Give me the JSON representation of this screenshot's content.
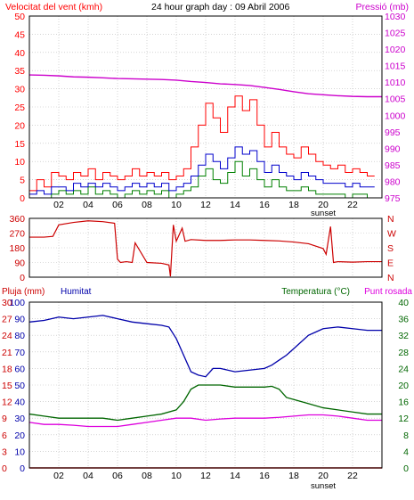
{
  "colors": {
    "wind_avg": "#0000cc",
    "wind_gust": "#ff0000",
    "wind_low": "#008000",
    "pressure": "#cc00cc",
    "direction": "#cc0000",
    "humidity": "#0000aa",
    "temperature": "#006600",
    "dewpoint": "#dd00dd",
    "rain": "#cc0000",
    "frame": "#000000",
    "grid": "#bbbbbb"
  },
  "chart_data": [
    {
      "type": "line",
      "title": "24 hour graph day : 09 Abril 2006",
      "left_axis_label": "Velocitat del vent (kmh)",
      "right_axis_label": "Pressió (mb)",
      "x_tick_labels": [
        "02",
        "04",
        "06",
        "08",
        "10",
        "12",
        "14",
        "16",
        "18",
        "20",
        "22"
      ],
      "x_ticks_hours": [
        2,
        4,
        6,
        8,
        10,
        12,
        14,
        16,
        18,
        20,
        22
      ],
      "x_range_hours": [
        0,
        24
      ],
      "sunset_label": "sunset",
      "sunset_hour": 20,
      "y_left_ticks": [
        0,
        5,
        10,
        15,
        20,
        25,
        30,
        35,
        40,
        45,
        50
      ],
      "y_left_range": [
        0,
        50
      ],
      "y_right_ticks": [
        975,
        980,
        985,
        990,
        995,
        1000,
        1005,
        1010,
        1015,
        1020,
        1025,
        1030
      ],
      "y_right_range": [
        975,
        1030
      ],
      "grid": true,
      "series": [
        {
          "name": "wind_gust",
          "x": [
            0,
            0.5,
            1,
            1.5,
            2,
            2.5,
            3,
            3.5,
            4,
            4.5,
            5,
            5.5,
            6,
            6.5,
            7,
            7.5,
            8,
            8.5,
            9,
            9.5,
            10,
            10.5,
            11,
            11.5,
            12,
            12.5,
            13,
            13.5,
            14,
            14.5,
            15,
            15.5,
            16,
            16.5,
            17,
            17.5,
            18,
            18.5,
            19,
            19.5,
            20,
            20.5,
            21,
            21.5,
            22,
            22.5,
            23,
            23.5
          ],
          "values": [
            2,
            5,
            3,
            7,
            6,
            5,
            7,
            6,
            8,
            5,
            7,
            6,
            5,
            6,
            8,
            6,
            7,
            6,
            7,
            5,
            6,
            8,
            14,
            20,
            26,
            22,
            18,
            25,
            28,
            24,
            27,
            20,
            14,
            18,
            14,
            12,
            11,
            14,
            12,
            10,
            9,
            8,
            9,
            7,
            8,
            7,
            6,
            6
          ]
        },
        {
          "name": "wind_avg",
          "x": [
            0,
            0.5,
            1,
            1.5,
            2,
            2.5,
            3,
            3.5,
            4,
            4.5,
            5,
            5.5,
            6,
            6.5,
            7,
            7.5,
            8,
            8.5,
            9,
            9.5,
            10,
            10.5,
            11,
            11.5,
            12,
            12.5,
            13,
            13.5,
            14,
            14.5,
            15,
            15.5,
            16,
            16.5,
            17,
            17.5,
            18,
            18.5,
            19,
            19.5,
            20,
            20.5,
            21,
            21.5,
            22,
            22.5,
            23,
            23.5
          ],
          "values": [
            1,
            2,
            1,
            3,
            3,
            2,
            4,
            3,
            4,
            3,
            4,
            3,
            2,
            3,
            4,
            3,
            4,
            3,
            4,
            2,
            3,
            4,
            6,
            9,
            12,
            10,
            8,
            11,
            14,
            12,
            13,
            10,
            7,
            9,
            7,
            6,
            5,
            7,
            6,
            5,
            4,
            4,
            4,
            3,
            4,
            3,
            3,
            3
          ]
        },
        {
          "name": "wind_low",
          "x": [
            0,
            0.5,
            1,
            1.5,
            2,
            2.5,
            3,
            3.5,
            4,
            4.5,
            5,
            5.5,
            6,
            6.5,
            7,
            7.5,
            8,
            8.5,
            9,
            9.5,
            10,
            10.5,
            11,
            11.5,
            12,
            12.5,
            13,
            13.5,
            14,
            14.5,
            15,
            15.5,
            16,
            16.5,
            17,
            17.5,
            18,
            18.5,
            19,
            19.5,
            20,
            20.5,
            21,
            21.5,
            22,
            22.5,
            23,
            23.5
          ],
          "values": [
            0,
            0,
            0,
            1,
            2,
            1,
            2,
            1,
            3,
            1,
            2,
            1,
            0,
            1,
            2,
            1,
            2,
            1,
            2,
            0,
            1,
            2,
            3,
            6,
            8,
            5,
            4,
            7,
            10,
            6,
            8,
            5,
            3,
            5,
            3,
            2,
            2,
            3,
            2,
            1,
            1,
            1,
            1,
            0,
            1,
            1,
            0,
            0
          ]
        },
        {
          "name": "pressure",
          "axis": "right",
          "x": [
            0,
            1,
            2,
            3,
            4,
            5,
            6,
            7,
            8,
            9,
            10,
            11,
            12,
            13,
            14,
            15,
            16,
            17,
            18,
            19,
            20,
            21,
            22,
            23,
            24
          ],
          "values": [
            1012.2,
            1012.1,
            1011.9,
            1011.6,
            1011.5,
            1011.3,
            1011.1,
            1011.0,
            1010.9,
            1010.8,
            1010.6,
            1010.2,
            1009.9,
            1009.5,
            1009.3,
            1009.0,
            1008.4,
            1007.8,
            1007.1,
            1006.5,
            1006.2,
            1005.9,
            1005.7,
            1005.6,
            1005.6
          ]
        }
      ]
    },
    {
      "type": "line",
      "right_axis_label": "N W S E N",
      "y_ticks": [
        0,
        90,
        180,
        270,
        360
      ],
      "y_range": [
        0,
        360
      ],
      "x_range_hours": [
        0,
        24
      ],
      "grid": true,
      "series": [
        {
          "name": "direction",
          "x": [
            0,
            1,
            1.6,
            2,
            3,
            4,
            5,
            5.8,
            6,
            6.2,
            6.6,
            7,
            7.2,
            8,
            9,
            9.5,
            9.6,
            9.8,
            10,
            10.4,
            10.6,
            11,
            12,
            13,
            14,
            15,
            16,
            17,
            18,
            19,
            20,
            20.2,
            20.5,
            20.7,
            21,
            22,
            23,
            24
          ],
          "values": [
            245,
            245,
            250,
            320,
            335,
            345,
            340,
            330,
            110,
            90,
            95,
            90,
            210,
            90,
            85,
            75,
            5,
            320,
            220,
            300,
            220,
            230,
            225,
            225,
            228,
            228,
            225,
            222,
            215,
            205,
            175,
            140,
            310,
            90,
            95,
            92,
            95,
            95
          ]
        }
      ]
    },
    {
      "type": "line",
      "left_axis_labels": [
        "Pluja (mm)",
        "Humitat"
      ],
      "right_axis_label": "Temperatura (°C)",
      "right_axis_label2": "Punt rosada",
      "x_tick_labels": [
        "02",
        "04",
        "06",
        "08",
        "10",
        "12",
        "14",
        "16",
        "18",
        "20",
        "22"
      ],
      "x_ticks_hours": [
        2,
        4,
        6,
        8,
        10,
        12,
        14,
        16,
        18,
        20,
        22
      ],
      "x_range_hours": [
        0,
        24
      ],
      "sunset_label": "sunset",
      "sunset_hour": 20,
      "y_left_ticks": [
        0,
        10,
        20,
        30,
        40,
        50,
        60,
        70,
        80,
        90,
        100
      ],
      "y_left_alt_ticks": [
        0,
        3,
        6,
        9,
        12,
        15,
        18,
        21,
        24,
        27,
        30
      ],
      "y_left_range": [
        0,
        100
      ],
      "y_right_ticks": [
        0,
        4,
        8,
        12,
        16,
        20,
        24,
        28,
        32,
        36,
        40
      ],
      "y_right_range": [
        0,
        40
      ],
      "grid": true,
      "series": [
        {
          "name": "humidity",
          "x": [
            0,
            1,
            2,
            3,
            4,
            5,
            6,
            7,
            8,
            9,
            9.5,
            10,
            10.5,
            11,
            11.5,
            12,
            12.5,
            13,
            14,
            15,
            16,
            16.5,
            17,
            17.5,
            18,
            18.5,
            19,
            19.5,
            20,
            21,
            22,
            23,
            24
          ],
          "values": [
            88,
            89,
            91,
            90,
            91,
            92,
            90,
            88,
            87,
            86,
            85,
            78,
            68,
            58,
            56,
            55,
            60,
            60,
            58,
            59,
            60,
            62,
            65,
            68,
            72,
            76,
            80,
            82,
            84,
            85,
            84,
            83,
            83
          ]
        },
        {
          "name": "rain",
          "x": [
            0,
            24
          ],
          "values": [
            0,
            0
          ]
        },
        {
          "name": "temperature",
          "axis": "right",
          "x": [
            0,
            1,
            2,
            3,
            4,
            5,
            6,
            7,
            8,
            9,
            10,
            10.5,
            11,
            11.5,
            12,
            13,
            14,
            15,
            16,
            16.5,
            17,
            17.5,
            18,
            19,
            20,
            21,
            22,
            23,
            24
          ],
          "values": [
            13,
            12.5,
            12,
            12,
            12,
            12,
            11.5,
            12,
            12.5,
            13,
            14,
            16,
            19,
            20,
            20,
            20,
            19.5,
            19.5,
            19.5,
            19.7,
            19,
            17,
            16.5,
            15.5,
            14.5,
            14,
            13.5,
            13,
            13
          ]
        },
        {
          "name": "dewpoint",
          "axis": "right",
          "x": [
            0,
            1,
            2,
            3,
            4,
            5,
            6,
            7,
            8,
            9,
            10,
            11,
            12,
            13,
            14,
            15,
            16,
            17,
            18,
            19,
            20,
            21,
            22,
            23,
            24
          ],
          "values": [
            11,
            10.5,
            10.5,
            10.3,
            10,
            10,
            10,
            10.5,
            11,
            11.5,
            12,
            12,
            11.5,
            11.8,
            12,
            12,
            12,
            12.2,
            12.5,
            12.8,
            12.8,
            12.5,
            12,
            11.5,
            11.5
          ]
        }
      ]
    }
  ]
}
